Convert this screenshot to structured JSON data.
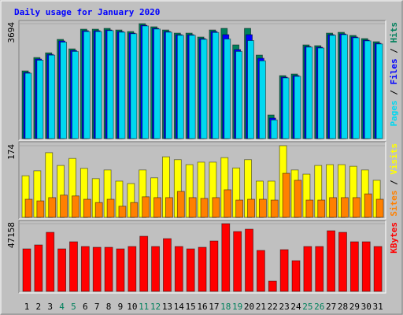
{
  "title": "Daily usage for January 2020",
  "chart_data": [
    {
      "type": "overlap-bar",
      "ylim": [
        0,
        3694
      ],
      "yticks": [
        3694
      ],
      "legend_separator": " / ",
      "series": [
        {
          "name": "Hits",
          "color": "#00805c",
          "values": [
            2176,
            2606,
            2757,
            3188,
            2884,
            3517,
            3517,
            3542,
            3491,
            3441,
            3694,
            3593,
            3491,
            3390,
            3390,
            3264,
            3491,
            3542,
            3011,
            3542,
            2682,
            759,
            2024,
            2075,
            3011,
            2986,
            3390,
            3415,
            3315,
            3214,
            3113
          ]
        },
        {
          "name": "Files",
          "color": "#0000ff",
          "values": [
            2126,
            2556,
            2707,
            3138,
            2834,
            3467,
            3467,
            3492,
            3441,
            3391,
            3644,
            3543,
            3441,
            3340,
            3340,
            3214,
            3441,
            3340,
            2861,
            3340,
            2582,
            659,
            1974,
            2025,
            2961,
            2936,
            3340,
            3365,
            3265,
            3164,
            3063
          ]
        },
        {
          "name": "Pages",
          "color": "#00d8f0",
          "values": [
            2100,
            2520,
            2680,
            3100,
            2800,
            3440,
            3440,
            3470,
            3420,
            3370,
            3620,
            3520,
            3420,
            3320,
            3320,
            3190,
            3410,
            3200,
            2800,
            3150,
            2500,
            600,
            1950,
            2000,
            2940,
            2910,
            3320,
            3340,
            3240,
            3140,
            3040
          ]
        }
      ]
    },
    {
      "type": "overlap-bar",
      "ylim": [
        0,
        174
      ],
      "yticks": [
        174
      ],
      "legend_separator": " / ",
      "series": [
        {
          "name": "Visits",
          "color": "#ffff00",
          "values": [
            101,
            113,
            157,
            126,
            143,
            119,
            94,
            115,
            88,
            82,
            115,
            96,
            147,
            140,
            128,
            134,
            134,
            145,
            120,
            140,
            88,
            88,
            174,
            115,
            105,
            126,
            128,
            128,
            124,
            115,
            90
          ]
        },
        {
          "name": "Sites",
          "color": "#ff8000",
          "values": [
            44,
            40,
            48,
            54,
            52,
            44,
            36,
            44,
            27,
            36,
            50,
            48,
            48,
            63,
            48,
            46,
            48,
            67,
            42,
            44,
            44,
            42,
            107,
            90,
            42,
            42,
            48,
            48,
            48,
            57,
            44
          ]
        }
      ]
    },
    {
      "type": "overlap-bar",
      "ylim": [
        0,
        47158
      ],
      "yticks": [
        47158
      ],
      "legend_separator": " / ",
      "categories": [
        "1",
        "2",
        "3",
        "4",
        "5",
        "6",
        "7",
        "8",
        "9",
        "10",
        "11",
        "12",
        "13",
        "14",
        "15",
        "16",
        "17",
        "18",
        "19",
        "20",
        "21",
        "22",
        "23",
        "24",
        "25",
        "26",
        "27",
        "28",
        "29",
        "30",
        "31"
      ],
      "highlighted_categories": [
        3,
        4,
        10,
        11,
        17,
        18,
        24,
        25
      ],
      "highlight_color": "#00805c",
      "series": [
        {
          "name": "KBytes",
          "color": "#ff0000",
          "values": [
            29610,
            32352,
            41125,
            29610,
            34545,
            31255,
            30707,
            30707,
            29610,
            31255,
            38384,
            31255,
            36739,
            31255,
            29610,
            30707,
            35094,
            47158,
            41673,
            43318,
            28514,
            7128,
            29062,
            21385,
            31255,
            31255,
            42221,
            41125,
            34545,
            34545,
            31255
          ]
        }
      ]
    }
  ]
}
